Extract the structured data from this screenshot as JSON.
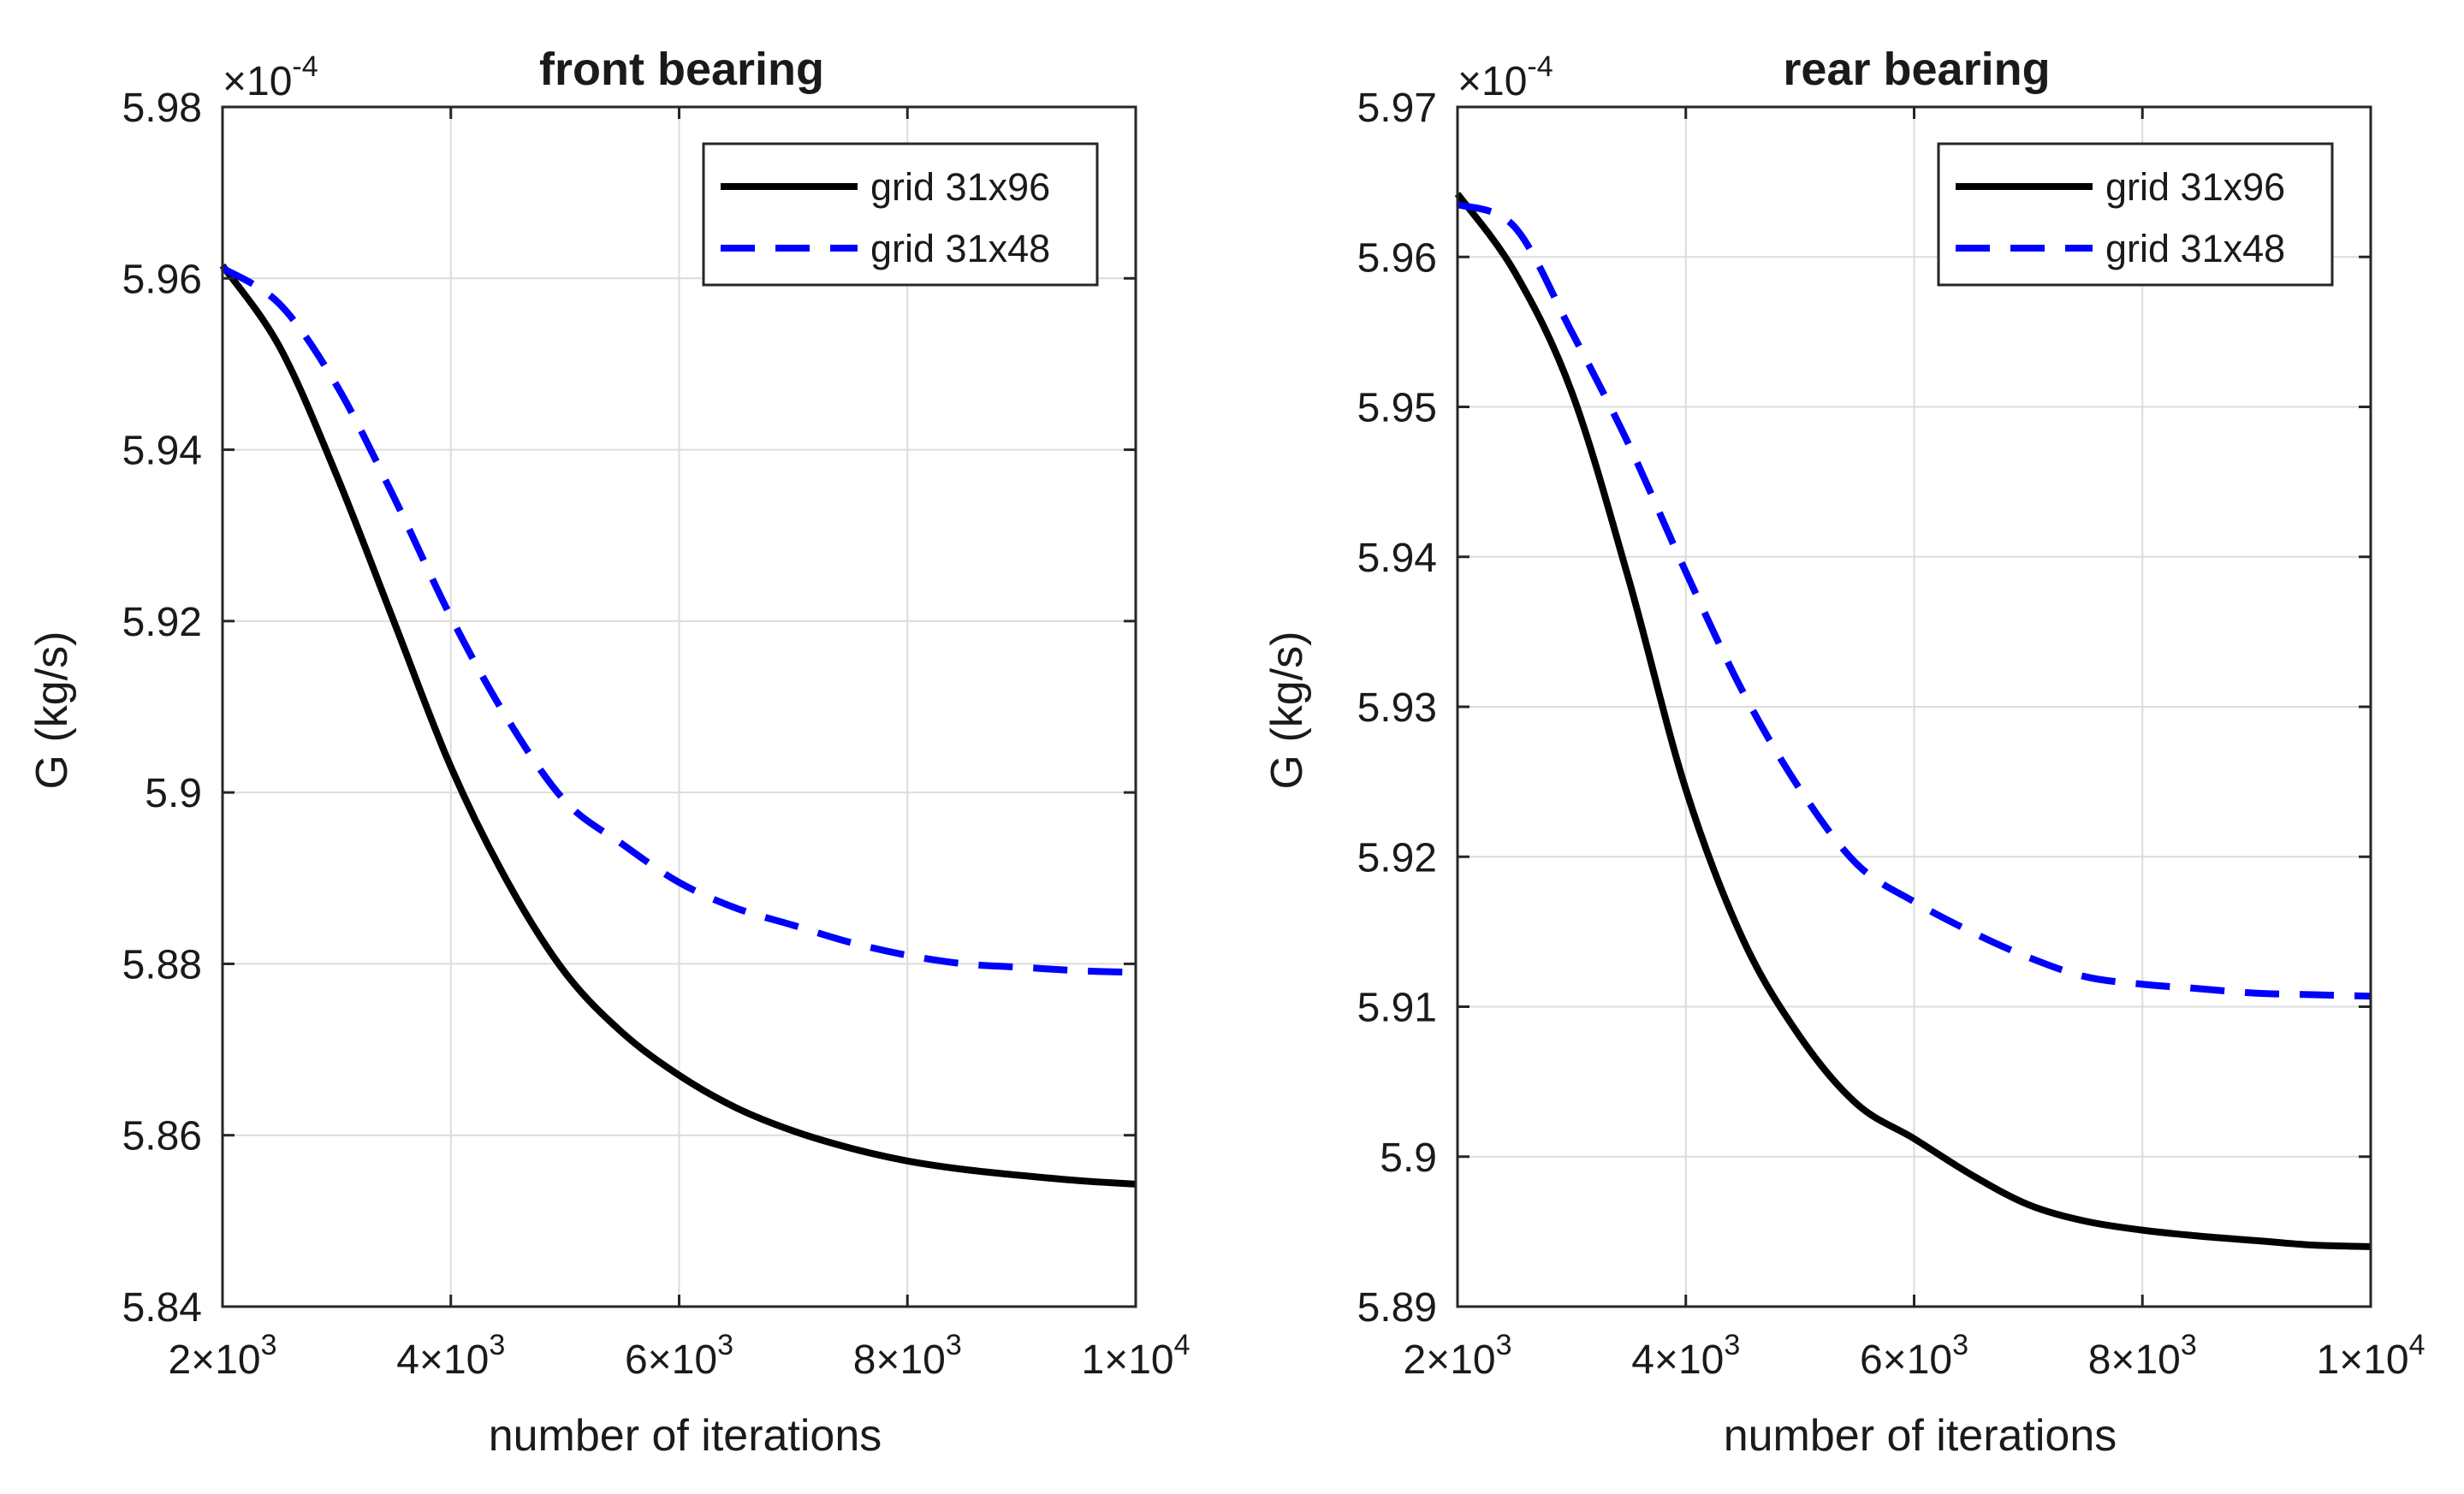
{
  "chart_data": [
    {
      "type": "line",
      "title": "front bearing",
      "xlabel": "number of iterations",
      "ylabel": "G (kg/s)",
      "y_multiplier": {
        "base": "×10",
        "exponent": "-4"
      },
      "xlim": [
        2000,
        10000
      ],
      "ylim": [
        5.84,
        5.98
      ],
      "x_ticks": [
        {
          "value": 2000,
          "mantissa": "2",
          "exponent": "3"
        },
        {
          "value": 4000,
          "mantissa": "4",
          "exponent": "3"
        },
        {
          "value": 6000,
          "mantissa": "6",
          "exponent": "3"
        },
        {
          "value": 8000,
          "mantissa": "8",
          "exponent": "3"
        },
        {
          "value": 10000,
          "mantissa": "1",
          "exponent": "4"
        }
      ],
      "y_ticks": [
        {
          "value": 5.84,
          "label": "5.84"
        },
        {
          "value": 5.86,
          "label": "5.86"
        },
        {
          "value": 5.88,
          "label": "5.88"
        },
        {
          "value": 5.9,
          "label": "5.9"
        },
        {
          "value": 5.92,
          "label": "5.92"
        },
        {
          "value": 5.94,
          "label": "5.94"
        },
        {
          "value": 5.96,
          "label": "5.96"
        },
        {
          "value": 5.98,
          "label": "5.98"
        }
      ],
      "grid": true,
      "legend_position": "top-right",
      "series": [
        {
          "name": "grid 31x96",
          "color": "#000000",
          "style": "solid",
          "x": [
            2000,
            2500,
            3000,
            3500,
            4000,
            4500,
            5000,
            5500,
            6000,
            6500,
            7000,
            7500,
            8000,
            8500,
            9000,
            9500,
            10000
          ],
          "y": [
            5.9615,
            5.952,
            5.937,
            5.92,
            5.903,
            5.8895,
            5.879,
            5.872,
            5.867,
            5.8632,
            5.8605,
            5.8585,
            5.857,
            5.856,
            5.8553,
            5.8547,
            5.8543
          ]
        },
        {
          "name": "grid 31x48",
          "color": "#0000ff",
          "style": "dashed",
          "x": [
            2000,
            2500,
            3000,
            3500,
            4000,
            4500,
            5000,
            5500,
            6000,
            6500,
            7000,
            7500,
            8000,
            8500,
            9000,
            9500,
            10000
          ],
          "y": [
            5.9612,
            5.957,
            5.9475,
            5.9345,
            5.9205,
            5.9085,
            5.899,
            5.894,
            5.8895,
            5.8865,
            5.8845,
            5.8825,
            5.881,
            5.88,
            5.8796,
            5.8792,
            5.879
          ]
        }
      ]
    },
    {
      "type": "line",
      "title": "rear bearing",
      "xlabel": "number of iterations",
      "ylabel": "G (kg/s)",
      "y_multiplier": {
        "base": "×10",
        "exponent": "-4"
      },
      "xlim": [
        2000,
        10000
      ],
      "ylim": [
        5.89,
        5.97
      ],
      "x_ticks": [
        {
          "value": 2000,
          "mantissa": "2",
          "exponent": "3"
        },
        {
          "value": 4000,
          "mantissa": "4",
          "exponent": "3"
        },
        {
          "value": 6000,
          "mantissa": "6",
          "exponent": "3"
        },
        {
          "value": 8000,
          "mantissa": "8",
          "exponent": "3"
        },
        {
          "value": 10000,
          "mantissa": "1",
          "exponent": "4"
        }
      ],
      "y_ticks": [
        {
          "value": 5.89,
          "label": "5.89"
        },
        {
          "value": 5.9,
          "label": "5.9"
        },
        {
          "value": 5.91,
          "label": "5.91"
        },
        {
          "value": 5.92,
          "label": "5.92"
        },
        {
          "value": 5.93,
          "label": "5.93"
        },
        {
          "value": 5.94,
          "label": "5.94"
        },
        {
          "value": 5.95,
          "label": "5.95"
        },
        {
          "value": 5.96,
          "label": "5.96"
        },
        {
          "value": 5.97,
          "label": "5.97"
        }
      ],
      "grid": true,
      "legend_position": "top-right",
      "series": [
        {
          "name": "grid 31x96",
          "color": "#000000",
          "style": "solid",
          "x": [
            2000,
            2500,
            3000,
            3500,
            4000,
            4500,
            5000,
            5500,
            6000,
            6500,
            7000,
            7500,
            8000,
            8500,
            9000,
            9500,
            10000
          ],
          "y": [
            5.9642,
            5.959,
            5.951,
            5.9385,
            5.9245,
            5.9145,
            5.908,
            5.9035,
            5.9012,
            5.8988,
            5.8968,
            5.8957,
            5.8951,
            5.8947,
            5.8944,
            5.8941,
            5.894
          ]
        },
        {
          "name": "grid 31x48",
          "color": "#0000ff",
          "style": "dashed",
          "x": [
            2000,
            2500,
            3000,
            3500,
            4000,
            4500,
            5000,
            5500,
            6000,
            6500,
            7000,
            7500,
            8000,
            8500,
            9000,
            9500,
            10000
          ],
          "y": [
            5.9635,
            5.962,
            5.955,
            5.9475,
            5.939,
            5.931,
            5.9245,
            5.9195,
            5.917,
            5.915,
            5.9133,
            5.912,
            5.9115,
            5.9112,
            5.9109,
            5.9108,
            5.9107
          ]
        }
      ]
    }
  ]
}
